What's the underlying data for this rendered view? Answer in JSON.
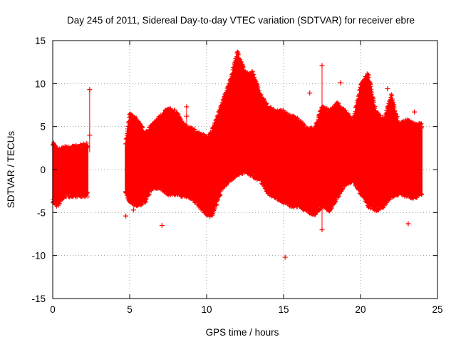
{
  "chart_data": {
    "type": "scatter",
    "title": "Day 245 of 2011, Sidereal Day-to-day VTEC variation (SDTVAR) for receiver ebre",
    "xlabel": "GPS time / hours",
    "ylabel": "SDTVAR / TECUs",
    "xlim": [
      0,
      25
    ],
    "ylim": [
      -15,
      15
    ],
    "grid": true,
    "x_ticks": [
      0,
      5,
      10,
      15,
      20,
      25
    ],
    "y_ticks": [
      -15,
      -10,
      -5,
      0,
      5,
      10,
      15
    ],
    "x_tick_labels": [
      "0",
      "5",
      "10",
      "15",
      "20",
      "25"
    ],
    "y_tick_labels": [
      "-15",
      "-10",
      "-5",
      "0",
      "5",
      "10",
      "15"
    ],
    "marker": "+",
    "color": "#ff0000",
    "envelope": {
      "x": [
        0.0,
        0.3,
        0.8,
        1.5,
        2.0,
        2.3,
        2.5,
        4.7,
        5.0,
        5.5,
        6.0,
        6.5,
        7.0,
        7.5,
        8.0,
        8.5,
        9.0,
        9.5,
        10.0,
        10.3,
        10.5,
        11.0,
        11.5,
        12.0,
        12.5,
        13.0,
        13.5,
        14.0,
        14.5,
        15.0,
        15.5,
        16.0,
        16.5,
        17.0,
        17.5,
        18.0,
        18.5,
        19.0,
        19.5,
        20.0,
        20.5,
        21.0,
        21.5,
        22.0,
        22.5,
        23.0,
        23.5,
        24.0
      ],
      "upper": [
        3.0,
        2.0,
        2.3,
        2.4,
        2.6,
        2.7,
        null,
        2.5,
        6.2,
        5.5,
        4.0,
        5.0,
        6.0,
        6.8,
        6.5,
        5.0,
        4.5,
        4.0,
        3.5,
        4.0,
        5.0,
        7.5,
        10.0,
        13.5,
        11.0,
        11.0,
        8.5,
        7.0,
        6.5,
        6.5,
        6.0,
        5.5,
        4.5,
        4.5,
        7.0,
        6.5,
        7.5,
        6.5,
        5.5,
        9.5,
        11.0,
        6.5,
        5.5,
        8.5,
        5.0,
        5.5,
        5.0,
        5.0
      ],
      "lower": [
        -3.5,
        -4.0,
        -2.8,
        -2.8,
        -2.8,
        -2.8,
        null,
        -2.2,
        -3.5,
        -4.0,
        -3.5,
        -1.8,
        -2.0,
        -2.6,
        -2.6,
        -2.8,
        -3.0,
        -4.0,
        -5.0,
        -5.2,
        -4.5,
        -2.0,
        -1.0,
        -0.3,
        0.0,
        -0.5,
        -1.0,
        -2.5,
        -3.0,
        -3.5,
        -4.0,
        -4.0,
        -4.5,
        -5.0,
        -4.0,
        -4.5,
        -3.0,
        -1.5,
        -1.0,
        -2.5,
        -4.0,
        -4.5,
        -4.0,
        -3.0,
        -2.5,
        -2.8,
        -3.0,
        -2.5
      ]
    },
    "outliers": [
      {
        "x": 2.4,
        "y": 9.3
      },
      {
        "x": 2.4,
        "y": 4.0
      },
      {
        "x": 4.75,
        "y": -5.4
      },
      {
        "x": 5.25,
        "y": -4.7
      },
      {
        "x": 7.1,
        "y": -6.5
      },
      {
        "x": 8.7,
        "y": 7.3
      },
      {
        "x": 8.7,
        "y": 6.2
      },
      {
        "x": 10.4,
        "y": 4.8
      },
      {
        "x": 15.1,
        "y": -10.2
      },
      {
        "x": 16.7,
        "y": 8.9
      },
      {
        "x": 17.5,
        "y": 12.1
      },
      {
        "x": 17.5,
        "y": -7.0
      },
      {
        "x": 18.1,
        "y": -4.5
      },
      {
        "x": 18.7,
        "y": 10.1
      },
      {
        "x": 21.75,
        "y": 9.4
      },
      {
        "x": 23.1,
        "y": -6.3
      },
      {
        "x": 23.5,
        "y": 6.7
      }
    ],
    "spikes": [
      {
        "x": 2.4,
        "low": 2.0,
        "high": 9.3
      },
      {
        "x": 8.7,
        "low": 5.5,
        "high": 7.5
      },
      {
        "x": 17.5,
        "low": -7.0,
        "high": 12.1
      },
      {
        "x": 18.1,
        "low": -4.5,
        "high": -3.0
      }
    ]
  }
}
